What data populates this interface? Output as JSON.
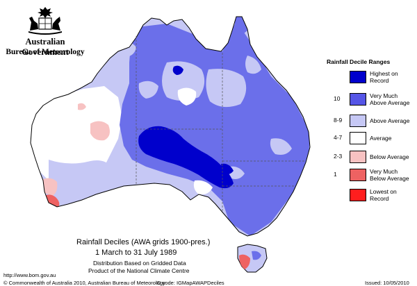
{
  "header": {
    "government": "Australian Government",
    "bureau": "Bureau of Meteorology"
  },
  "legend": {
    "title": "Rainfall Decile Ranges",
    "items": [
      {
        "label_lines": [
          "Highest on",
          "Record"
        ],
        "decile": "",
        "color": "#0000cc"
      },
      {
        "label_lines": [
          "Very Much",
          "Above Average"
        ],
        "decile": "10",
        "color": "#5555e6"
      },
      {
        "label_lines": [
          "Above Average"
        ],
        "decile": "8-9",
        "color": "#c6c8f5"
      },
      {
        "label_lines": [
          "Average"
        ],
        "decile": "4-7",
        "color": "#ffffff"
      },
      {
        "label_lines": [
          "Below Average"
        ],
        "decile": "2-3",
        "color": "#f7c2c2"
      },
      {
        "label_lines": [
          "Very Much",
          "Below Average"
        ],
        "decile": "1",
        "color": "#ee6262"
      },
      {
        "label_lines": [
          "Lowest on",
          "Record"
        ],
        "decile": "",
        "color": "#ff1e1e"
      }
    ]
  },
  "footer": {
    "title": "Rainfall Deciles (AWA grids 1900-pres.)",
    "period": "1 March to 31 July 1989",
    "line1": "Distribution Based on Gridded Data",
    "line2": "Product of the National Climate Centre",
    "url": "http://www.bom.gov.au",
    "copyright": "© Commonwealth of Australia 2010, Australian Bureau of Meteorology",
    "id_code": "ID code: IGMapAWAPDeciles",
    "issued": "Issued: 10/05/2010"
  }
}
